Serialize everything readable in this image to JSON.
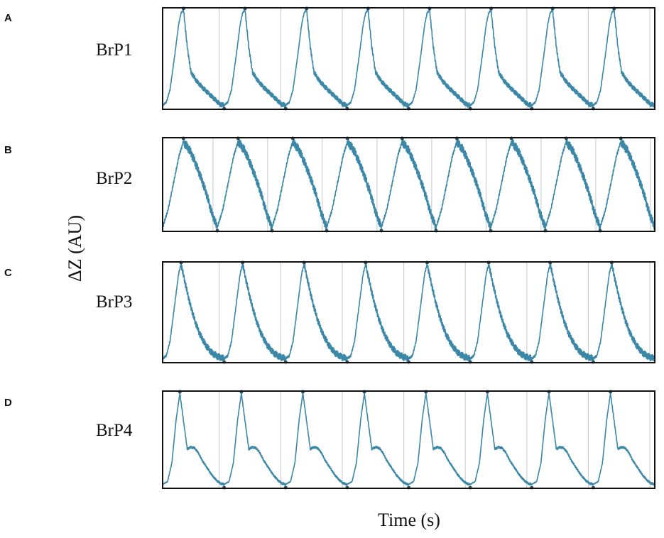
{
  "figure": {
    "xlabel": "Time (s)",
    "ylabel": "ΔZ (AU)"
  },
  "colors": {
    "trace": "#3a87a8",
    "marker": "#2f4f63",
    "frame": "#111111",
    "vertical_lines": "#c9c9c9"
  },
  "chart_data": [
    {
      "type": "line",
      "panel": "A",
      "title": "BrP1",
      "grid": false,
      "cycles": 8,
      "peak_fraction": 0.34,
      "ripple": 0.025,
      "waveform_phase": [
        0,
        0.06,
        0.12,
        0.2,
        0.26,
        0.3,
        0.34,
        0.4,
        0.46,
        0.55,
        0.65,
        0.75,
        0.85,
        0.93,
        1.0
      ],
      "waveform_value": [
        0.02,
        0.05,
        0.18,
        0.55,
        0.85,
        0.97,
        1.0,
        0.62,
        0.36,
        0.27,
        0.2,
        0.14,
        0.08,
        0.03,
        0.02
      ]
    },
    {
      "type": "line",
      "panel": "B",
      "title": "BrP2",
      "grid": false,
      "cycles": 9,
      "peak_fraction": 0.38,
      "ripple": 0.05,
      "waveform_phase": [
        0,
        0.1,
        0.2,
        0.3,
        0.38,
        0.5,
        0.6,
        0.7,
        0.8,
        0.9,
        1.0
      ],
      "waveform_value": [
        0.02,
        0.22,
        0.52,
        0.82,
        0.98,
        0.88,
        0.74,
        0.58,
        0.4,
        0.18,
        0.02
      ]
    },
    {
      "type": "line",
      "panel": "C",
      "title": "BrP3",
      "grid": false,
      "cycles": 8,
      "peak_fraction": 0.3,
      "ripple": 0.035,
      "waveform_phase": [
        0,
        0.06,
        0.12,
        0.2,
        0.26,
        0.3,
        0.36,
        0.44,
        0.52,
        0.6,
        0.7,
        0.8,
        0.9,
        1.0
      ],
      "waveform_value": [
        0.02,
        0.05,
        0.2,
        0.6,
        0.9,
        1.0,
        0.82,
        0.6,
        0.42,
        0.28,
        0.16,
        0.08,
        0.04,
        0.02
      ]
    },
    {
      "type": "line",
      "panel": "D",
      "title": "BrP4",
      "grid": false,
      "cycles": 8,
      "peak_fraction": 0.28,
      "ripple": 0.012,
      "waveform_phase": [
        0,
        0.08,
        0.15,
        0.22,
        0.28,
        0.34,
        0.4,
        0.46,
        0.52,
        0.58,
        0.64,
        0.72,
        0.8,
        0.88,
        0.94,
        1.0
      ],
      "waveform_value": [
        0.02,
        0.05,
        0.25,
        0.72,
        1.0,
        0.7,
        0.4,
        0.42,
        0.41,
        0.36,
        0.28,
        0.2,
        0.12,
        0.06,
        0.03,
        0.02
      ]
    }
  ]
}
